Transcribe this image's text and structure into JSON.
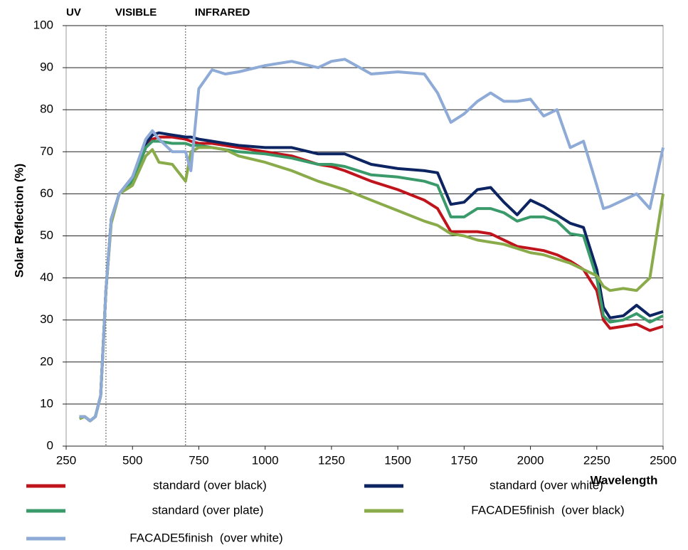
{
  "chart_data": {
    "type": "line",
    "x_label": "Wavelength",
    "y_label": "Solar Reflection (%)",
    "regions": [
      {
        "label": "UV",
        "start": 250
      },
      {
        "label": "VISIBLE",
        "start": 400
      },
      {
        "label": "INFRARED",
        "start": 700
      }
    ],
    "xlim": [
      250,
      2500
    ],
    "xticks": [
      250,
      500,
      750,
      1000,
      1250,
      1500,
      1750,
      2000,
      2250,
      2500
    ],
    "ylim": [
      0,
      100
    ],
    "yticks": [
      0,
      10,
      20,
      30,
      40,
      50,
      60,
      70,
      80,
      90,
      100
    ],
    "grid": true,
    "x": [
      300,
      320,
      340,
      360,
      380,
      400,
      420,
      450,
      500,
      550,
      575,
      600,
      650,
      700,
      720,
      750,
      800,
      850,
      900,
      1000,
      1100,
      1200,
      1250,
      1300,
      1400,
      1500,
      1600,
      1650,
      1700,
      1750,
      1800,
      1850,
      1900,
      1950,
      2000,
      2050,
      2100,
      2150,
      2200,
      2250,
      2275,
      2300,
      2350,
      2400,
      2450,
      2500
    ],
    "series": [
      {
        "name": "standard (over black)",
        "color": "#c0141c",
        "values": [
          7,
          7,
          6,
          7,
          12,
          37,
          54,
          60,
          63,
          71,
          73,
          73.5,
          73.5,
          73,
          72.5,
          72,
          72,
          71.5,
          71,
          70,
          69,
          67,
          66.5,
          65.5,
          63,
          61,
          58.5,
          56.5,
          51,
          51,
          51,
          50.5,
          49,
          47.5,
          47,
          46.5,
          45.5,
          44,
          42,
          37,
          30,
          28,
          28.5,
          29,
          27.5,
          28.5
        ]
      },
      {
        "name": "standard (over white)",
        "color": "#0c2461",
        "values": [
          7,
          7,
          6,
          7,
          12,
          37,
          54,
          60,
          64,
          72,
          74,
          74.5,
          74,
          73.5,
          73.5,
          73,
          72.5,
          72,
          71.5,
          71,
          71,
          69.5,
          69.5,
          69.5,
          67,
          66,
          65.5,
          65,
          57.5,
          58,
          61,
          61.5,
          58,
          55,
          58.5,
          57,
          55,
          53,
          52,
          42,
          33,
          30.5,
          31,
          33.5,
          31,
          32
        ]
      },
      {
        "name": "standard (over plate)",
        "color": "#3a9a6a",
        "values": [
          7,
          7,
          6,
          7,
          12,
          37,
          54,
          60,
          63,
          71,
          72.5,
          72.5,
          72,
          72,
          71.5,
          71.5,
          71,
          70.5,
          70,
          69.5,
          68.5,
          67,
          67,
          66.5,
          64.5,
          64,
          63,
          62,
          54.5,
          54.5,
          56.5,
          56.5,
          55.5,
          53.5,
          54.5,
          54.5,
          53.5,
          50.5,
          50,
          40,
          31,
          29.5,
          30,
          31.5,
          29.5,
          31
        ]
      },
      {
        "name": "FACADE5finish  (over black)",
        "color": "#8aab4a",
        "values": [
          6.5,
          7,
          6,
          7,
          12,
          37,
          53,
          60,
          62,
          69,
          70.5,
          67.5,
          67,
          63,
          70,
          71,
          71,
          70.5,
          69,
          67.5,
          65.5,
          63,
          62,
          61,
          58.5,
          56,
          53.5,
          52.5,
          50.5,
          50,
          49,
          48.5,
          48,
          47,
          46,
          45.5,
          44.5,
          43.5,
          42,
          40.5,
          38,
          37,
          37.5,
          37,
          40,
          60
        ]
      },
      {
        "name": "FACADE5finish  (over white)",
        "color": "#8eaad6",
        "values": [
          7,
          7,
          6,
          7,
          12,
          37,
          54,
          60,
          64,
          73,
          75,
          73,
          70,
          70,
          65.5,
          85,
          89.5,
          88.5,
          89,
          90.5,
          91.5,
          90,
          91.5,
          92,
          88.5,
          89,
          88.5,
          84,
          77,
          79,
          82,
          84,
          82,
          82,
          82.5,
          78.5,
          80,
          71,
          72.5,
          62,
          56.5,
          57,
          58.5,
          60,
          56.5,
          71
        ]
      }
    ]
  }
}
